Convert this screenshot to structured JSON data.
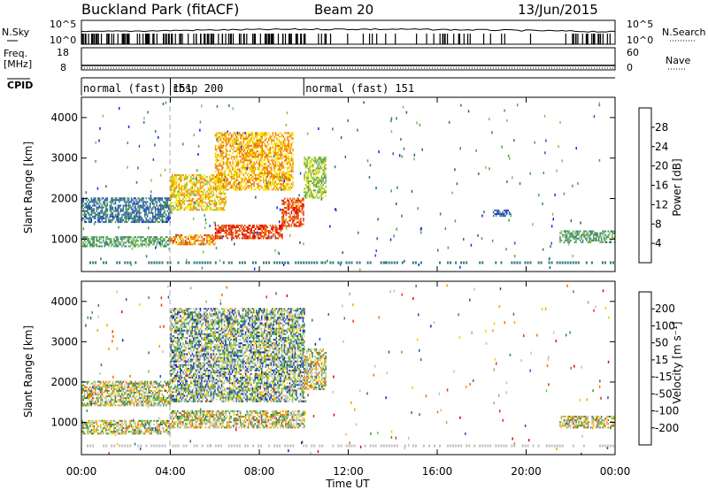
{
  "header": {
    "station": "Buckland Park (fitACF)",
    "beam": "Beam 20",
    "date": "13/Jun/2015"
  },
  "top_panels": {
    "nsky_label": "N.Sky",
    "nsky_top_tick": "10^5",
    "nsky_bottom_tick": "10^0",
    "nsearch_label": "N.Search",
    "nsearch_top_tick": "10^5",
    "nsearch_bottom_tick": "10^0",
    "freq_label_1": "Freq.",
    "freq_label_2": "[MHz]",
    "freq_top_tick": "18",
    "freq_bottom_tick": "8",
    "nave_label": "Nave",
    "nave_top_tick": "60",
    "nave_bottom_tick": "0",
    "cpid_label": "CPID",
    "cpid_segments": [
      {
        "label": "normal (fast) 151",
        "start_hour": 0.0,
        "end_hour": 4.0
      },
      {
        "label": "rbsp 200",
        "start_hour": 4.0,
        "end_hour": 10.0
      },
      {
        "label": "normal (fast) 151",
        "start_hour": 10.0,
        "end_hour": 24.0
      }
    ]
  },
  "colorbars": {
    "power": {
      "label": "Power [dB]",
      "ticks": [
        "4",
        "8",
        "12",
        "16",
        "20",
        "24",
        "28"
      ],
      "colors": [
        "#1a1aff",
        "#2b55b0",
        "#2f7a7a",
        "#4f9a5a",
        "#7ec24a",
        "#f2e600",
        "#f5a800",
        "#f07000",
        "#e83800",
        "#e00000"
      ]
    },
    "velocity": {
      "label": "Velocity [m s⁻¹]",
      "ticks": [
        "200",
        "100",
        "50",
        "15",
        "-15",
        "-50",
        "-100",
        "-200"
      ],
      "colors": [
        "#1a1ab8",
        "#2250b0",
        "#2a7a6a",
        "#3a9a3a",
        "#7ec24a",
        "#c0c0c0",
        "#c0c0c0",
        "#f2d000",
        "#f5a000",
        "#f07000",
        "#e83000",
        "#e00000"
      ]
    }
  },
  "chart_data": [
    {
      "type": "heatmap",
      "name": "power",
      "xlabel": "Time UT",
      "ylabel": "Slant Range [km]",
      "xlim": [
        0,
        24
      ],
      "ylim": [
        200,
        4500
      ],
      "x_ticks": [
        "00:00",
        "04:00",
        "08:00",
        "12:00",
        "16:00",
        "20:00",
        "00:00"
      ],
      "y_ticks": [
        "1000",
        "2000",
        "3000",
        "4000"
      ],
      "color_scale_label": "Power [dB]",
      "color_range": [
        0,
        30
      ],
      "regions": [
        {
          "t0": 0.0,
          "t1": 4.0,
          "r0": 800,
          "r1": 1050,
          "value": 10
        },
        {
          "t0": 0.0,
          "t1": 4.0,
          "r0": 1400,
          "r1": 2000,
          "value": 6
        },
        {
          "t0": 4.0,
          "t1": 6.0,
          "r0": 850,
          "r1": 1100,
          "value": 22
        },
        {
          "t0": 6.0,
          "t1": 9.0,
          "r0": 1000,
          "r1": 1350,
          "value": 27
        },
        {
          "t0": 9.0,
          "t1": 10.0,
          "r0": 1300,
          "r1": 2000,
          "value": 26
        },
        {
          "t0": 4.0,
          "t1": 6.5,
          "r0": 1700,
          "r1": 2600,
          "value": 18
        },
        {
          "t0": 6.0,
          "t1": 9.5,
          "r0": 2200,
          "r1": 3600,
          "value": 20
        },
        {
          "t0": 10.0,
          "t1": 11.0,
          "r0": 2000,
          "r1": 3000,
          "value": 14
        },
        {
          "t0": 21.5,
          "t1": 24.0,
          "r0": 900,
          "r1": 1200,
          "value": 10
        },
        {
          "t0": 18.5,
          "t1": 19.3,
          "r0": 1550,
          "r1": 1700,
          "value": 5
        }
      ]
    },
    {
      "type": "heatmap",
      "name": "velocity",
      "xlabel": "Time UT",
      "ylabel": "Slant Range [km]",
      "xlim": [
        0,
        24
      ],
      "ylim": [
        200,
        4500
      ],
      "x_ticks": [
        "00:00",
        "04:00",
        "08:00",
        "12:00",
        "16:00",
        "20:00",
        "00:00"
      ],
      "y_ticks": [
        "1000",
        "2000",
        "3000",
        "4000"
      ],
      "color_scale_label": "Velocity [m s⁻¹]",
      "color_range": [
        -200,
        200
      ],
      "regions": [
        {
          "t0": 0.0,
          "t1": 4.0,
          "r0": 700,
          "r1": 1050,
          "value": 0
        },
        {
          "t0": 0.0,
          "t1": 4.0,
          "r0": 1400,
          "r1": 2000,
          "value": 0
        },
        {
          "t0": 4.0,
          "t1": 10.0,
          "r0": 850,
          "r1": 1300,
          "value": 0
        },
        {
          "t0": 4.0,
          "t1": 10.0,
          "r0": 1500,
          "r1": 3800,
          "value": 60
        },
        {
          "t0": 10.0,
          "t1": 11.0,
          "r0": 1800,
          "r1": 2800,
          "value": 0
        },
        {
          "t0": 21.5,
          "t1": 24.0,
          "r0": 850,
          "r1": 1150,
          "value": 0
        }
      ]
    }
  ]
}
